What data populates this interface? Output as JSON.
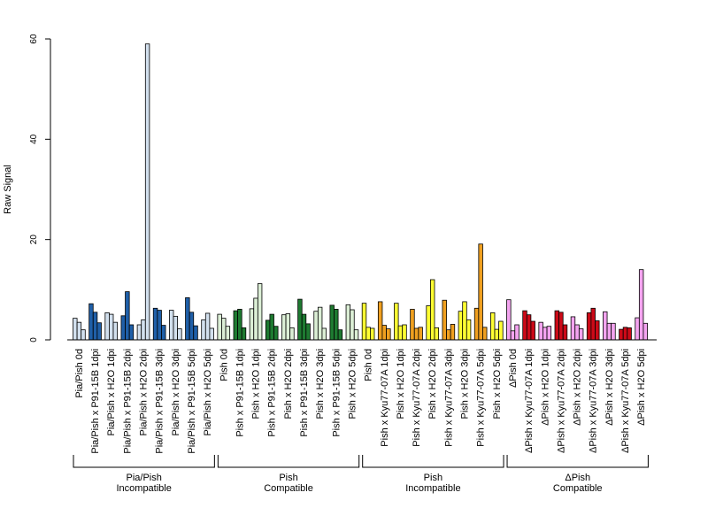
{
  "chart_data": {
    "type": "bar",
    "ylabel": "Raw Signal",
    "xlabel": "",
    "ylim": [
      0,
      60
    ],
    "yticks": [
      0,
      20,
      40,
      60
    ],
    "grid": false,
    "categories": [
      "Pia/Pish 0d",
      "Pia/Pish x P91-15B 1dpi",
      "Pia/Pish x H2O 1dpi",
      "Pia/Pish x P91-15B 2dpi",
      "Pia/Pish x H2O 2dpi",
      "Pia/Pish x P91-15B 3dpi",
      "Pia/Pish x H2O 3dpi",
      "Pia/Pish x P91-15B 5dpi",
      "Pia/Pish x H2O 5dpi",
      "Pish 0d",
      "Pish x P91-15B 1dpi",
      "Pish x H2O 1dpi",
      "Pish x P91-15B 2dpi",
      "Pish x H2O 2dpi",
      "Pish x P91-15B 3dpi",
      "Pish x H2O 3dpi",
      "Pish x P91-15B 5dpi",
      "Pish x H2O 5dpi",
      "Pish 0d",
      "Pish x Kyu77-07A 1dpi",
      "Pish x H2O 1dpi",
      "Pish x Kyu77-07A 2dpi",
      "Pish x H2O 2dpi",
      "Pish x Kyu77-07A 3dpi",
      "Pish x H2O 3dpi",
      "Pish x Kyu77-07A 5dpi",
      "Pish x H2O 5dpi",
      "ΔPish 0d",
      "ΔPish x Kyu77-07A 1dpi",
      "ΔPish x H2O 1dpi",
      "ΔPish x Kyu77-07A 2dpi",
      "ΔPish x H2O 2dpi",
      "ΔPish x Kyu77-07A 3dpi",
      "ΔPish x H2O 3dpi",
      "ΔPish x Kyu77-07A 5dpi",
      "ΔPish x H2O 5dpi"
    ],
    "values": [
      [
        4.3,
        3.5,
        2.0
      ],
      [
        7.2,
        5.5,
        3.4
      ],
      [
        5.4,
        5.1,
        3.5
      ],
      [
        4.8,
        9.6,
        3.0
      ],
      [
        3.0,
        4.0,
        59.0
      ],
      [
        6.3,
        5.9,
        2.9
      ],
      [
        5.9,
        4.7,
        2.2
      ],
      [
        8.4,
        5.5,
        2.8
      ],
      [
        4.0,
        5.3,
        2.3
      ],
      [
        5.1,
        4.3,
        2.7
      ],
      [
        5.8,
        6.1,
        2.4
      ],
      [
        6.2,
        8.3,
        11.2
      ],
      [
        3.9,
        5.1,
        2.7
      ],
      [
        5.0,
        5.2,
        2.4
      ],
      [
        8.1,
        5.1,
        3.2
      ],
      [
        5.7,
        6.5,
        2.3
      ],
      [
        6.9,
        6.1,
        2.0
      ],
      [
        7.0,
        6.0,
        2.0
      ],
      [
        7.3,
        2.5,
        2.3
      ],
      [
        7.6,
        2.9,
        2.2
      ],
      [
        7.3,
        2.8,
        3.0
      ],
      [
        6.1,
        2.3,
        2.5
      ],
      [
        6.8,
        12.0,
        2.4
      ],
      [
        7.9,
        2.0,
        3.1
      ],
      [
        5.7,
        7.6,
        4.0
      ],
      [
        6.3,
        19.1,
        2.5
      ],
      [
        5.4,
        2.1,
        3.7
      ],
      [
        8.0,
        1.8,
        3.0
      ],
      [
        5.8,
        5.0,
        3.7
      ],
      [
        3.5,
        2.5,
        2.7
      ],
      [
        5.8,
        5.5,
        3.0
      ],
      [
        4.6,
        3.0,
        2.2
      ],
      [
        5.4,
        6.3,
        3.8
      ],
      [
        5.6,
        3.3,
        3.3
      ],
      [
        2.1,
        2.5,
        2.4
      ],
      [
        4.4,
        14.0,
        3.3
      ]
    ],
    "groups": [
      {
        "label_line1": "Pia/Pish",
        "label_line2": "Incompatible",
        "start": 0,
        "end": 8,
        "colors": [
          "#D2E0EE",
          "#1F5FA8"
        ],
        "series": [
          "light",
          "dark",
          "light",
          "dark",
          "light",
          "dark",
          "light",
          "dark",
          "light"
        ]
      },
      {
        "label_line1": "Pish",
        "label_line2": "Compatible",
        "start": 9,
        "end": 17,
        "colors": [
          "#DCEFD6",
          "#1E7A31"
        ],
        "series": [
          "light",
          "dark",
          "light",
          "dark",
          "light",
          "dark",
          "light",
          "dark",
          "light"
        ]
      },
      {
        "label_line1": "Pish",
        "label_line2": "Incompatible",
        "start": 18,
        "end": 26,
        "colors": [
          "#FFFF33",
          "#F0A020"
        ],
        "series": [
          "light",
          "dark",
          "light",
          "dark",
          "light",
          "dark",
          "light",
          "dark",
          "light"
        ]
      },
      {
        "label_line1": "ΔPish",
        "label_line2": "Compatible",
        "start": 27,
        "end": 35,
        "colors": [
          "#F4A4F0",
          "#CC0A18"
        ],
        "series": [
          "light",
          "dark",
          "light",
          "dark",
          "light",
          "dark",
          "light",
          "dark",
          "light"
        ]
      }
    ]
  }
}
